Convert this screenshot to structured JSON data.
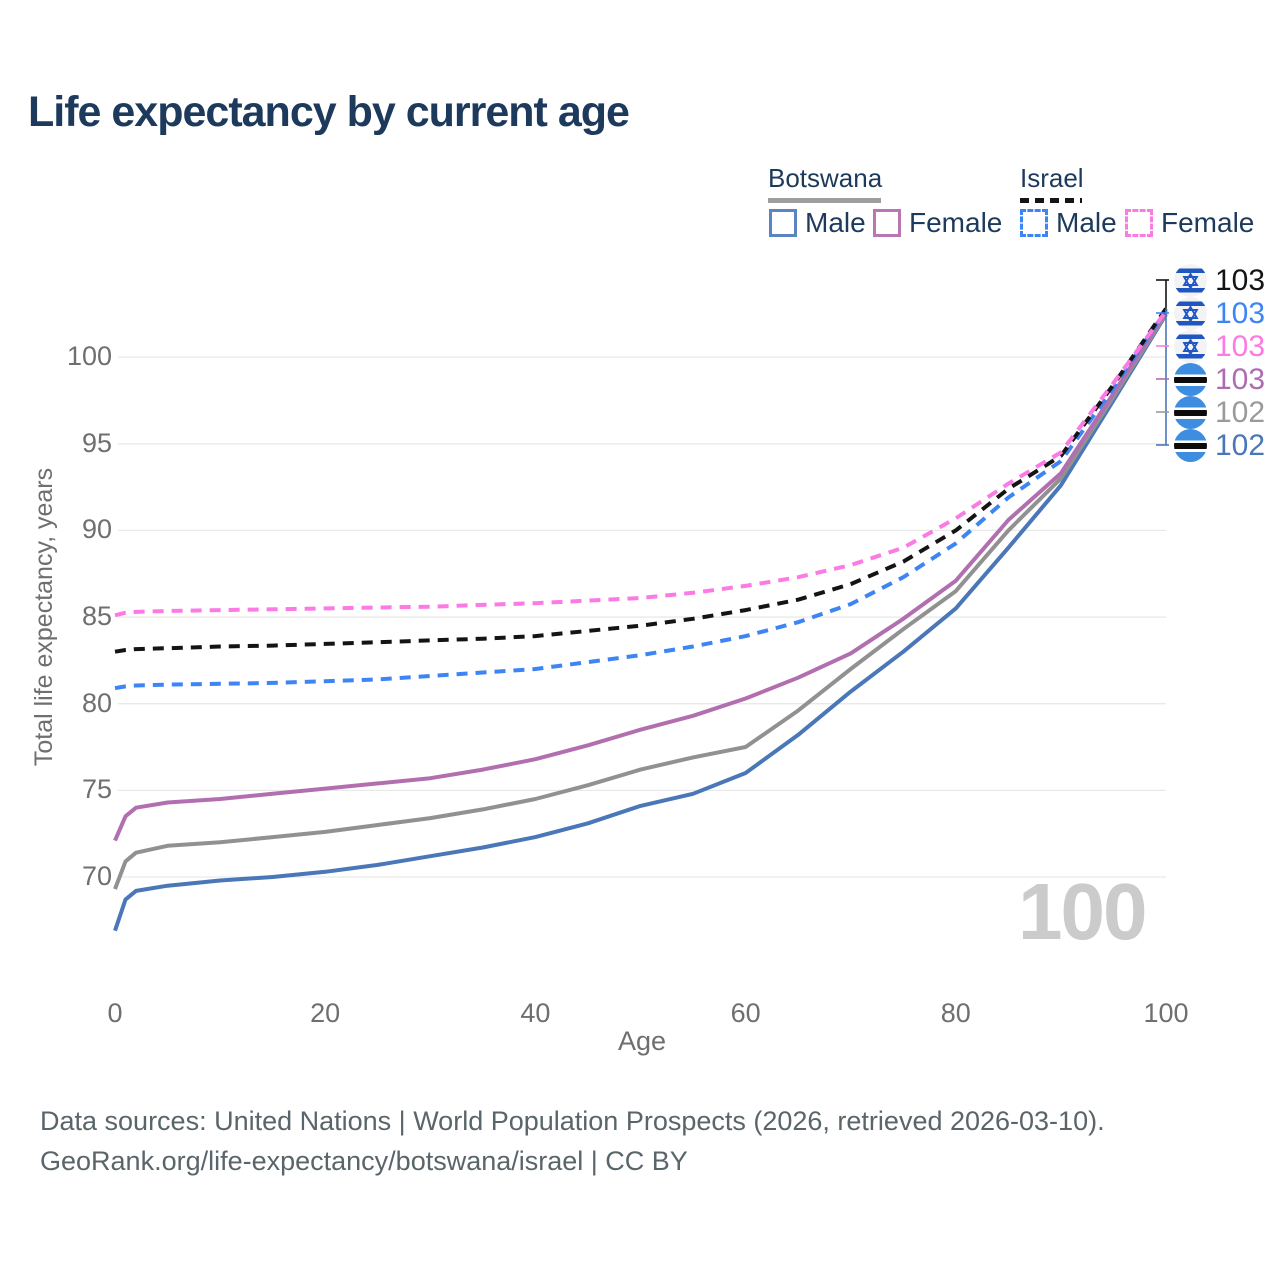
{
  "title": "Life expectancy by current age",
  "legend": {
    "groups": [
      {
        "country": "Botswana",
        "line_style": "solid",
        "underline_color": "#9e9e9e",
        "items": [
          {
            "label": "Male",
            "color": "#4a77b8"
          },
          {
            "label": "Female",
            "color": "#b976b3"
          }
        ]
      },
      {
        "country": "Israel",
        "line_style": "dashed",
        "underline_color": "#141414",
        "items": [
          {
            "label": "Male",
            "color": "#3d85f4"
          },
          {
            "label": "Female",
            "color": "#fb7ae4"
          }
        ]
      }
    ]
  },
  "chart_data": {
    "type": "line",
    "title": "Life expectancy by current age",
    "xlabel": "Age",
    "ylabel": "Total life expectancy, years",
    "xlim": [
      0,
      100
    ],
    "ylim": [
      66,
      104
    ],
    "xticks": [
      0,
      20,
      40,
      60,
      80,
      100
    ],
    "yticks": [
      70,
      75,
      80,
      85,
      90,
      95,
      100
    ],
    "grid": "horizontal",
    "legend_position": "top-right",
    "x": [
      0,
      1,
      2,
      5,
      10,
      15,
      20,
      25,
      30,
      35,
      40,
      45,
      50,
      55,
      60,
      65,
      70,
      75,
      80,
      85,
      90,
      95,
      100
    ],
    "series": [
      {
        "name": "Botswana Male",
        "country": "Botswana",
        "sex": "male",
        "color": "#4a77b8",
        "dash": "solid",
        "values": [
          66.9,
          68.7,
          69.2,
          69.5,
          69.8,
          70.0,
          70.3,
          70.7,
          71.2,
          71.7,
          72.3,
          73.1,
          74.1,
          74.8,
          76.0,
          78.2,
          80.7,
          83.0,
          85.5,
          89.0,
          92.6,
          97.5,
          102.45
        ]
      },
      {
        "name": "Botswana",
        "country": "Botswana",
        "sex": "all",
        "color": "#919191",
        "dash": "solid",
        "values": [
          69.3,
          70.9,
          71.4,
          71.8,
          72.0,
          72.3,
          72.6,
          73.0,
          73.4,
          73.9,
          74.5,
          75.3,
          76.2,
          76.9,
          77.5,
          79.6,
          82.0,
          84.3,
          86.5,
          90.0,
          93.0,
          97.7,
          102.5
        ]
      },
      {
        "name": "Botswana Female",
        "country": "Botswana",
        "sex": "female",
        "color": "#b26fb0",
        "dash": "solid",
        "values": [
          72.1,
          73.5,
          74.0,
          74.3,
          74.5,
          74.8,
          75.1,
          75.4,
          75.7,
          76.2,
          76.8,
          77.6,
          78.5,
          79.3,
          80.3,
          81.5,
          82.9,
          84.9,
          87.1,
          90.6,
          93.3,
          97.9,
          102.6
        ]
      },
      {
        "name": "Israel Male",
        "country": "Israel",
        "sex": "male",
        "color": "#3d85f4",
        "dash": "dashed",
        "values": [
          80.9,
          81.0,
          81.05,
          81.1,
          81.15,
          81.2,
          81.3,
          81.4,
          81.6,
          81.8,
          82.0,
          82.4,
          82.8,
          83.3,
          83.9,
          84.7,
          85.75,
          87.3,
          89.25,
          91.9,
          94.0,
          98.2,
          102.7
        ]
      },
      {
        "name": "Israel",
        "country": "Israel",
        "sex": "all",
        "color": "#141414",
        "dash": "dashed",
        "values": [
          83.0,
          83.1,
          83.15,
          83.2,
          83.3,
          83.35,
          83.45,
          83.55,
          83.65,
          83.75,
          83.9,
          84.2,
          84.5,
          84.9,
          85.4,
          86.0,
          86.9,
          88.2,
          90.0,
          92.4,
          94.3,
          98.4,
          102.8
        ]
      },
      {
        "name": "Israel Female",
        "country": "Israel",
        "sex": "female",
        "color": "#fb7ae4",
        "dash": "dashed",
        "values": [
          85.1,
          85.25,
          85.3,
          85.35,
          85.4,
          85.45,
          85.5,
          85.55,
          85.6,
          85.7,
          85.8,
          85.95,
          86.1,
          86.4,
          86.8,
          87.3,
          88.0,
          89.0,
          90.7,
          92.7,
          94.5,
          98.5,
          102.65
        ]
      }
    ],
    "end_labels": [
      {
        "series": "Israel",
        "flag": "israel",
        "value": "103",
        "color": "#141414"
      },
      {
        "series": "Israel Male",
        "flag": "israel",
        "value": "103",
        "color": "#3d85f4"
      },
      {
        "series": "Israel Female",
        "flag": "israel",
        "value": "103",
        "color": "#fb7ae4"
      },
      {
        "series": "Botswana Female",
        "flag": "botswana",
        "value": "103",
        "color": "#ad6cb0"
      },
      {
        "series": "Botswana",
        "flag": "botswana",
        "value": "102",
        "color": "#9a9a9a"
      },
      {
        "series": "Botswana Male",
        "flag": "botswana",
        "value": "102",
        "color": "#4a77b8"
      }
    ],
    "watermark": "100",
    "colors": {
      "grid": "#e9e9e9",
      "axis_text": "#6f6f6f",
      "title_text": "#1d3a5c",
      "watermark": "#cbcbcb"
    }
  },
  "footer": {
    "line1": "Data sources: United Nations | World Population Prospects (2026, retrieved 2026-03-10).",
    "line2": "GeoRank.org/life-expectancy/botswana/israel | CC BY"
  }
}
